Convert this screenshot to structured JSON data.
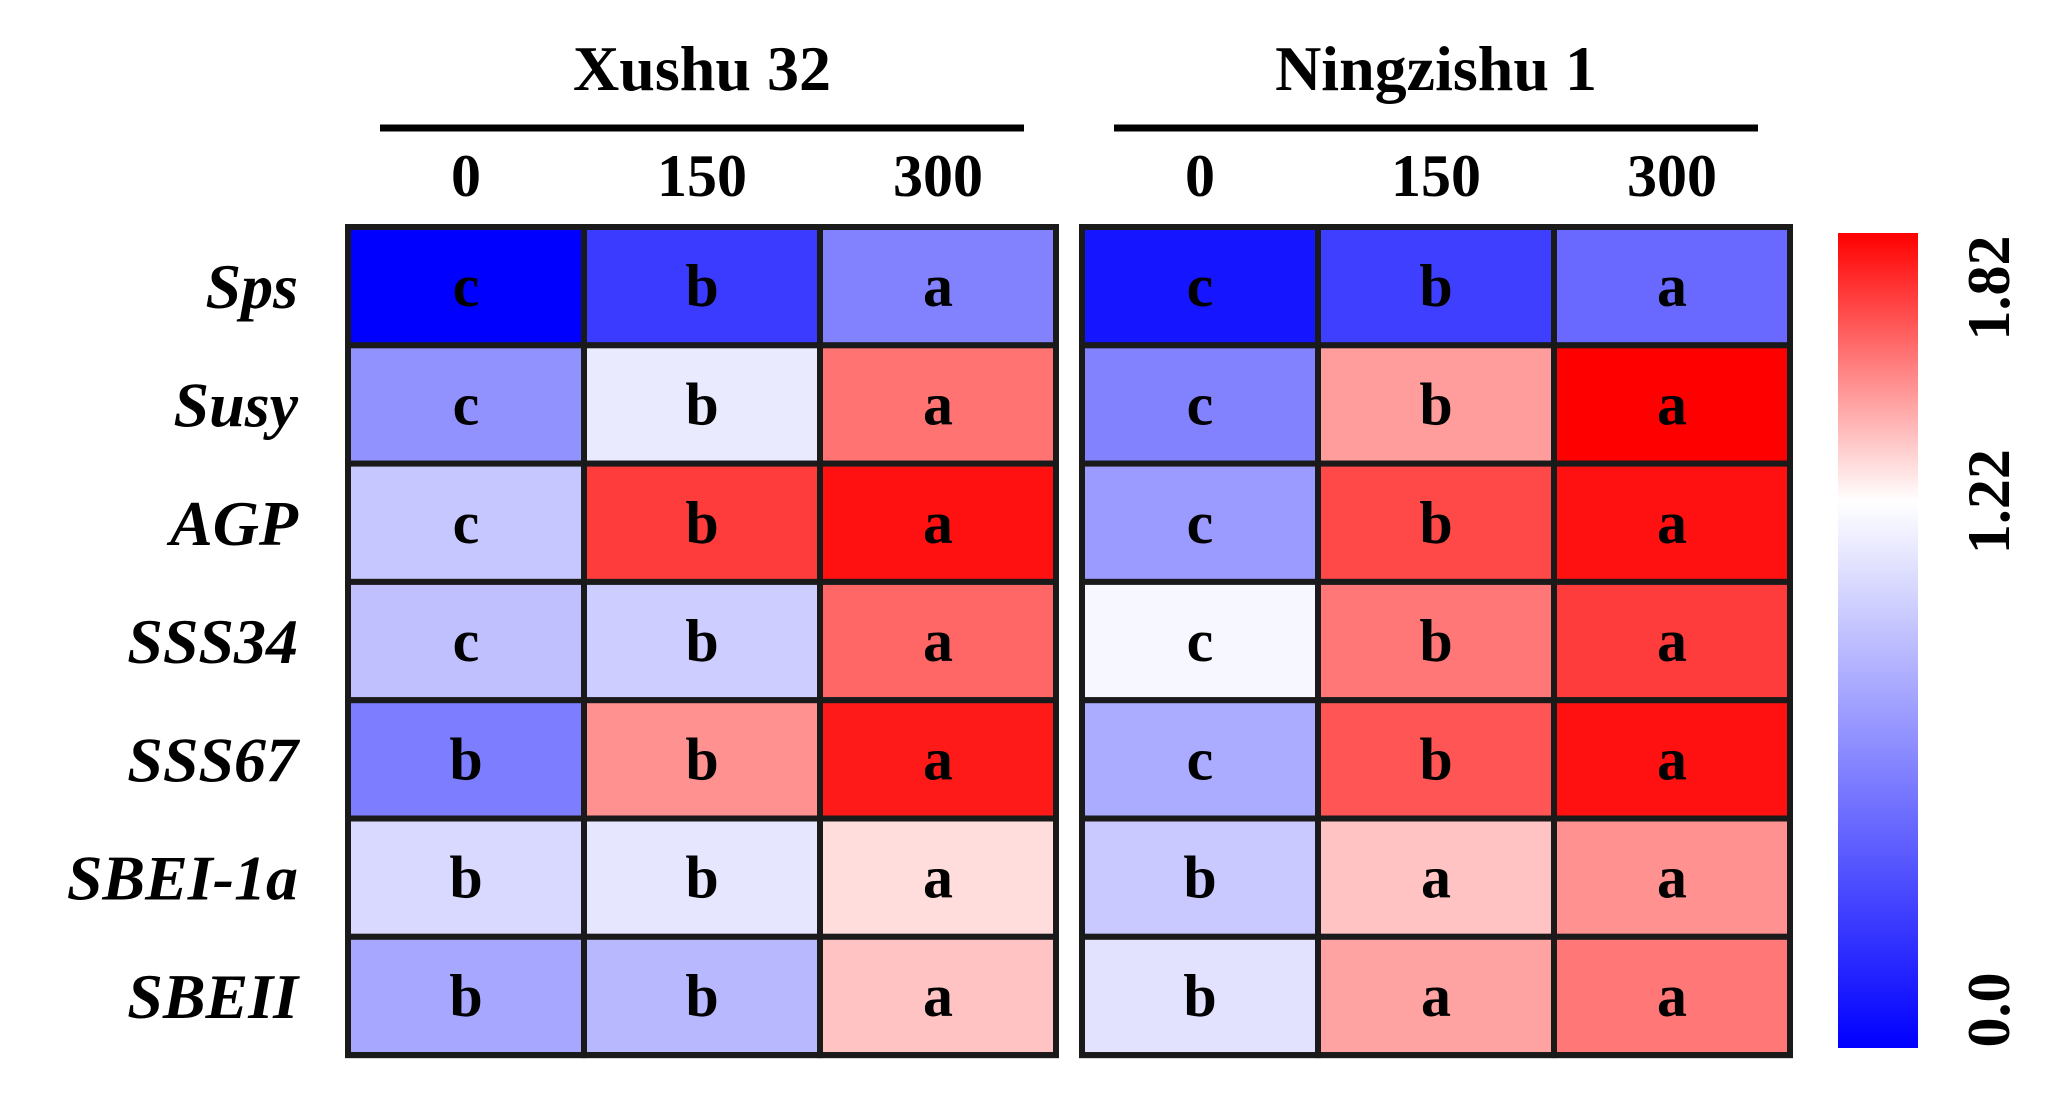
{
  "chart_data": {
    "type": "heatmap",
    "color_scale": {
      "min": 0.0,
      "mid": 1.22,
      "max": 1.82,
      "colors": {
        "low": "#0000ff",
        "mid": "#ffffff",
        "high": "#ff0000"
      },
      "tick_labels": [
        "0.0",
        "1.22",
        "1.82"
      ]
    },
    "rows": [
      "Sps",
      "Susy",
      "AGP",
      "SSS34",
      "SSS67",
      "SBEI-1a",
      "SBEII"
    ],
    "panels": [
      {
        "title": "Xushu 32",
        "columns": [
          "0",
          "150",
          "300"
        ],
        "values": [
          [
            0.0,
            0.28,
            0.62
          ],
          [
            0.7,
            1.12,
            1.55
          ],
          [
            0.95,
            1.68,
            1.78
          ],
          [
            0.92,
            0.98,
            1.58
          ],
          [
            0.6,
            1.48,
            1.76
          ],
          [
            1.04,
            1.1,
            1.3
          ],
          [
            0.8,
            0.88,
            1.36
          ]
        ],
        "letters": [
          [
            "c",
            "b",
            "a"
          ],
          [
            "c",
            "b",
            "a"
          ],
          [
            "c",
            "b",
            "a"
          ],
          [
            "c",
            "b",
            "a"
          ],
          [
            "b",
            "b",
            "a"
          ],
          [
            "b",
            "b",
            "a"
          ],
          [
            "b",
            "b",
            "a"
          ]
        ]
      },
      {
        "title": "Ningzishu 1",
        "columns": [
          "0",
          "150",
          "300"
        ],
        "values": [
          [
            0.1,
            0.3,
            0.5
          ],
          [
            0.62,
            1.45,
            1.82
          ],
          [
            0.74,
            1.65,
            1.78
          ],
          [
            1.18,
            1.54,
            1.68
          ],
          [
            0.82,
            1.62,
            1.78
          ],
          [
            0.96,
            1.36,
            1.48
          ],
          [
            1.08,
            1.44,
            1.54
          ]
        ],
        "letters": [
          [
            "c",
            "b",
            "a"
          ],
          [
            "c",
            "b",
            "a"
          ],
          [
            "c",
            "b",
            "a"
          ],
          [
            "c",
            "b",
            "a"
          ],
          [
            "c",
            "b",
            "a"
          ],
          [
            "b",
            "a",
            "a"
          ],
          [
            "b",
            "a",
            "a"
          ]
        ]
      }
    ]
  }
}
